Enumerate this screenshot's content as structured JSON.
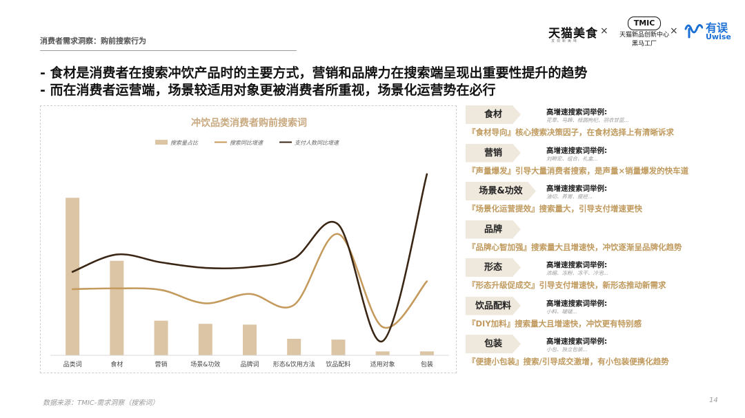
{
  "header": {
    "topic": "消费者需求洞察：购前搜索行为",
    "logos": {
      "tmall": "天猫美食",
      "tmall_sub": "发现新美味",
      "times": "×",
      "tmic_box": "TMIC",
      "tmic_line1": "天猫新品创新中心",
      "tmic_line2": "黑马工厂",
      "uwise_cn": "有误",
      "uwise_en": "Uwise"
    }
  },
  "headlines": [
    "- 食材是消费者在搜索冲饮产品时的主要方式，营销和品牌力在搜索端呈现出重要性提升的趋势",
    "- 而在消费者运营端，场景较适用对象更被消费者所重视，场景化运营势在必行"
  ],
  "chart_data": {
    "type": "bar",
    "title": "冲饮品类消费者购前搜索词",
    "categories": [
      "品类词",
      "食材",
      "营销",
      "场景&功效",
      "品牌词",
      "形态&饮用方法",
      "饮品配料",
      "适用对象",
      "包装"
    ],
    "series": [
      {
        "name": "搜索量占比",
        "type": "bar",
        "color": "#dcc5a4",
        "values": [
          100,
          60,
          22,
          20,
          19.5,
          10.5,
          10,
          2.5,
          2.5
        ]
      },
      {
        "name": "搜索同比增速",
        "type": "line",
        "color": "#c49a5d",
        "values": [
          42,
          42.5,
          41.5,
          33,
          39,
          32,
          77,
          18,
          47
        ]
      },
      {
        "name": "支付人数同比增速",
        "type": "line",
        "color": "#3a2614",
        "values": [
          53,
          64,
          59,
          55.5,
          56,
          61.5,
          83,
          9,
          115
        ]
      }
    ],
    "ylim": [
      0,
      125
    ],
    "grid": false,
    "legend": "top"
  },
  "panel": {
    "keyword_title": "高增速搜索词举例:",
    "categories": [
      {
        "label": "食材",
        "examples": "花草、马蹄、桂圆枸杞、羽衣甘蓝...",
        "insight": "『食材导向』核心搜索决策因子，在食材选择上有清晰诉求"
      },
      {
        "label": "营销",
        "examples": "刘畊宏、组合、礼盒...",
        "insight": "『声量爆发』引导大量消费者搜索，是声量×销量爆发的快车道"
      },
      {
        "label": "场景&功效",
        "examples": "油切、养胃、瘦经...",
        "insight": "『场景化运营提效』搜索量大，引导支付增速更快"
      },
      {
        "label": "品牌",
        "examples": "",
        "insight": "『品牌心智加强』搜索量大且增速快，冲饮逐渐呈品牌化趋势"
      },
      {
        "label": "形态",
        "examples": "浓缩、冻粉、冻干、冷泡...",
        "insight": "『形态升级促成交』引导支付增速快，新形态推动新需求"
      },
      {
        "label": "饮品配料",
        "examples": "小料、啵啵...",
        "insight": "『DIY加料』搜索量大且增速快，冲饮更有特别感"
      },
      {
        "label": "包装",
        "examples": "小包、独立包装...",
        "insight": "『便捷小包装』搜索/引导成交激增，有小包装便携化趋势"
      }
    ]
  },
  "footer": {
    "source": "数据来源：TMIC-需求洞察（搜索词）",
    "page": "14"
  }
}
